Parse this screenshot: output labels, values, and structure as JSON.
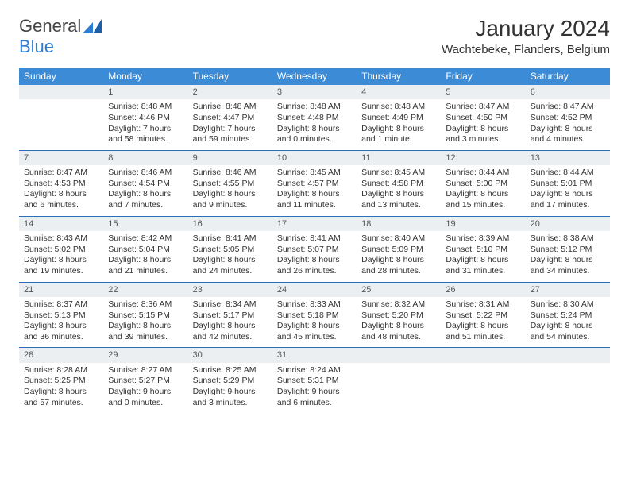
{
  "logo": {
    "part1": "General",
    "part2": "Blue"
  },
  "title": "January 2024",
  "location": "Wachtebeke, Flanders, Belgium",
  "colors": {
    "header_bg": "#3b8bd6",
    "header_text": "#ffffff",
    "daynum_bg": "#eceff1",
    "row_border": "#2d6fb5",
    "logo_blue": "#2d7dd2",
    "text": "#333333"
  },
  "typography": {
    "title_fontsize": 28,
    "location_fontsize": 15,
    "dayheader_fontsize": 12,
    "cell_fontsize": 10.5
  },
  "dayHeaders": [
    "Sunday",
    "Monday",
    "Tuesday",
    "Wednesday",
    "Thursday",
    "Friday",
    "Saturday"
  ],
  "weeks": [
    [
      {
        "num": "",
        "sunrise": "",
        "sunset": "",
        "daylight": ""
      },
      {
        "num": "1",
        "sunrise": "Sunrise: 8:48 AM",
        "sunset": "Sunset: 4:46 PM",
        "daylight": "Daylight: 7 hours and 58 minutes."
      },
      {
        "num": "2",
        "sunrise": "Sunrise: 8:48 AM",
        "sunset": "Sunset: 4:47 PM",
        "daylight": "Daylight: 7 hours and 59 minutes."
      },
      {
        "num": "3",
        "sunrise": "Sunrise: 8:48 AM",
        "sunset": "Sunset: 4:48 PM",
        "daylight": "Daylight: 8 hours and 0 minutes."
      },
      {
        "num": "4",
        "sunrise": "Sunrise: 8:48 AM",
        "sunset": "Sunset: 4:49 PM",
        "daylight": "Daylight: 8 hours and 1 minute."
      },
      {
        "num": "5",
        "sunrise": "Sunrise: 8:47 AM",
        "sunset": "Sunset: 4:50 PM",
        "daylight": "Daylight: 8 hours and 3 minutes."
      },
      {
        "num": "6",
        "sunrise": "Sunrise: 8:47 AM",
        "sunset": "Sunset: 4:52 PM",
        "daylight": "Daylight: 8 hours and 4 minutes."
      }
    ],
    [
      {
        "num": "7",
        "sunrise": "Sunrise: 8:47 AM",
        "sunset": "Sunset: 4:53 PM",
        "daylight": "Daylight: 8 hours and 6 minutes."
      },
      {
        "num": "8",
        "sunrise": "Sunrise: 8:46 AM",
        "sunset": "Sunset: 4:54 PM",
        "daylight": "Daylight: 8 hours and 7 minutes."
      },
      {
        "num": "9",
        "sunrise": "Sunrise: 8:46 AM",
        "sunset": "Sunset: 4:55 PM",
        "daylight": "Daylight: 8 hours and 9 minutes."
      },
      {
        "num": "10",
        "sunrise": "Sunrise: 8:45 AM",
        "sunset": "Sunset: 4:57 PM",
        "daylight": "Daylight: 8 hours and 11 minutes."
      },
      {
        "num": "11",
        "sunrise": "Sunrise: 8:45 AM",
        "sunset": "Sunset: 4:58 PM",
        "daylight": "Daylight: 8 hours and 13 minutes."
      },
      {
        "num": "12",
        "sunrise": "Sunrise: 8:44 AM",
        "sunset": "Sunset: 5:00 PM",
        "daylight": "Daylight: 8 hours and 15 minutes."
      },
      {
        "num": "13",
        "sunrise": "Sunrise: 8:44 AM",
        "sunset": "Sunset: 5:01 PM",
        "daylight": "Daylight: 8 hours and 17 minutes."
      }
    ],
    [
      {
        "num": "14",
        "sunrise": "Sunrise: 8:43 AM",
        "sunset": "Sunset: 5:02 PM",
        "daylight": "Daylight: 8 hours and 19 minutes."
      },
      {
        "num": "15",
        "sunrise": "Sunrise: 8:42 AM",
        "sunset": "Sunset: 5:04 PM",
        "daylight": "Daylight: 8 hours and 21 minutes."
      },
      {
        "num": "16",
        "sunrise": "Sunrise: 8:41 AM",
        "sunset": "Sunset: 5:05 PM",
        "daylight": "Daylight: 8 hours and 24 minutes."
      },
      {
        "num": "17",
        "sunrise": "Sunrise: 8:41 AM",
        "sunset": "Sunset: 5:07 PM",
        "daylight": "Daylight: 8 hours and 26 minutes."
      },
      {
        "num": "18",
        "sunrise": "Sunrise: 8:40 AM",
        "sunset": "Sunset: 5:09 PM",
        "daylight": "Daylight: 8 hours and 28 minutes."
      },
      {
        "num": "19",
        "sunrise": "Sunrise: 8:39 AM",
        "sunset": "Sunset: 5:10 PM",
        "daylight": "Daylight: 8 hours and 31 minutes."
      },
      {
        "num": "20",
        "sunrise": "Sunrise: 8:38 AM",
        "sunset": "Sunset: 5:12 PM",
        "daylight": "Daylight: 8 hours and 34 minutes."
      }
    ],
    [
      {
        "num": "21",
        "sunrise": "Sunrise: 8:37 AM",
        "sunset": "Sunset: 5:13 PM",
        "daylight": "Daylight: 8 hours and 36 minutes."
      },
      {
        "num": "22",
        "sunrise": "Sunrise: 8:36 AM",
        "sunset": "Sunset: 5:15 PM",
        "daylight": "Daylight: 8 hours and 39 minutes."
      },
      {
        "num": "23",
        "sunrise": "Sunrise: 8:34 AM",
        "sunset": "Sunset: 5:17 PM",
        "daylight": "Daylight: 8 hours and 42 minutes."
      },
      {
        "num": "24",
        "sunrise": "Sunrise: 8:33 AM",
        "sunset": "Sunset: 5:18 PM",
        "daylight": "Daylight: 8 hours and 45 minutes."
      },
      {
        "num": "25",
        "sunrise": "Sunrise: 8:32 AM",
        "sunset": "Sunset: 5:20 PM",
        "daylight": "Daylight: 8 hours and 48 minutes."
      },
      {
        "num": "26",
        "sunrise": "Sunrise: 8:31 AM",
        "sunset": "Sunset: 5:22 PM",
        "daylight": "Daylight: 8 hours and 51 minutes."
      },
      {
        "num": "27",
        "sunrise": "Sunrise: 8:30 AM",
        "sunset": "Sunset: 5:24 PM",
        "daylight": "Daylight: 8 hours and 54 minutes."
      }
    ],
    [
      {
        "num": "28",
        "sunrise": "Sunrise: 8:28 AM",
        "sunset": "Sunset: 5:25 PM",
        "daylight": "Daylight: 8 hours and 57 minutes."
      },
      {
        "num": "29",
        "sunrise": "Sunrise: 8:27 AM",
        "sunset": "Sunset: 5:27 PM",
        "daylight": "Daylight: 9 hours and 0 minutes."
      },
      {
        "num": "30",
        "sunrise": "Sunrise: 8:25 AM",
        "sunset": "Sunset: 5:29 PM",
        "daylight": "Daylight: 9 hours and 3 minutes."
      },
      {
        "num": "31",
        "sunrise": "Sunrise: 8:24 AM",
        "sunset": "Sunset: 5:31 PM",
        "daylight": "Daylight: 9 hours and 6 minutes."
      },
      {
        "num": "",
        "sunrise": "",
        "sunset": "",
        "daylight": ""
      },
      {
        "num": "",
        "sunrise": "",
        "sunset": "",
        "daylight": ""
      },
      {
        "num": "",
        "sunrise": "",
        "sunset": "",
        "daylight": ""
      }
    ]
  ]
}
